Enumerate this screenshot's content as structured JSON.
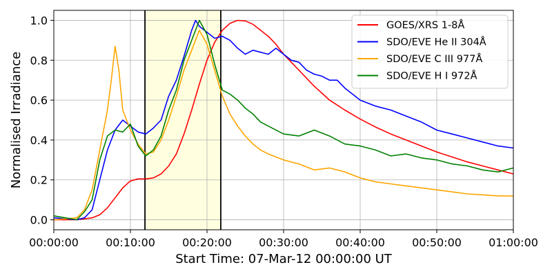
{
  "chart_data": {
    "type": "line",
    "xlabel": "Start Time: 07-Mar-12 00:00:00 UT",
    "ylabel": "Normalised Irradiance",
    "xlim": [
      0,
      60
    ],
    "ylim": [
      -0.05,
      1.05
    ],
    "x_unit": "minutes",
    "grid": true,
    "legend_position": "top-right",
    "xticks": [
      0,
      10,
      20,
      30,
      40,
      50,
      60
    ],
    "xtick_labels": [
      "00:00:00",
      "00:10:00",
      "00:20:00",
      "00:30:00",
      "00:40:00",
      "00:50:00",
      "01:00:00"
    ],
    "yticks": [
      0.0,
      0.2,
      0.4,
      0.6,
      0.8,
      1.0
    ],
    "ytick_labels": [
      "0.0",
      "0.2",
      "0.4",
      "0.6",
      "0.8",
      "1.0"
    ],
    "highlight_span": {
      "start": 11.9,
      "end": 21.8,
      "color": "#ffffe0"
    },
    "vlines": [
      11.9,
      21.8
    ],
    "series": [
      {
        "name": "GOES/XRS 1-8Å",
        "color": "#ff0000",
        "x": [
          0,
          3,
          5,
          6,
          7,
          8,
          9,
          10,
          11,
          12,
          13,
          14,
          15,
          16,
          17,
          18,
          19,
          20,
          21,
          22,
          23,
          24,
          25,
          26,
          27,
          28,
          29,
          30,
          32,
          34,
          36,
          38,
          40,
          42,
          44,
          46,
          48,
          50,
          52,
          54,
          56,
          58,
          60
        ],
        "y": [
          0.0,
          0.0,
          0.01,
          0.025,
          0.06,
          0.11,
          0.16,
          0.195,
          0.205,
          0.205,
          0.21,
          0.23,
          0.27,
          0.33,
          0.43,
          0.55,
          0.68,
          0.8,
          0.89,
          0.95,
          0.985,
          1.0,
          0.997,
          0.98,
          0.95,
          0.92,
          0.88,
          0.83,
          0.75,
          0.67,
          0.6,
          0.55,
          0.505,
          0.465,
          0.43,
          0.4,
          0.37,
          0.34,
          0.315,
          0.29,
          0.27,
          0.25,
          0.23
        ]
      },
      {
        "name": "SDO/EVE He II 304Å",
        "color": "#0000ff",
        "x": [
          0,
          3,
          4,
          5,
          6,
          7,
          8,
          9,
          10,
          11,
          12,
          13,
          14,
          15,
          16,
          17,
          18,
          18.5,
          19,
          20,
          21,
          22,
          23,
          24,
          25,
          26,
          27,
          28,
          29,
          30,
          31,
          32,
          33,
          34,
          35,
          36,
          37,
          38,
          40,
          42,
          44,
          46,
          48,
          50,
          52,
          54,
          56,
          58,
          60
        ],
        "y": [
          0.01,
          0.0,
          0.01,
          0.05,
          0.2,
          0.35,
          0.45,
          0.5,
          0.47,
          0.44,
          0.43,
          0.46,
          0.5,
          0.62,
          0.7,
          0.82,
          0.95,
          1.0,
          0.97,
          0.94,
          0.91,
          0.92,
          0.9,
          0.86,
          0.83,
          0.85,
          0.84,
          0.83,
          0.86,
          0.83,
          0.8,
          0.79,
          0.75,
          0.73,
          0.72,
          0.7,
          0.7,
          0.66,
          0.6,
          0.57,
          0.55,
          0.52,
          0.49,
          0.45,
          0.43,
          0.41,
          0.39,
          0.37,
          0.36
        ]
      },
      {
        "name": "SDO/EVE C III 977Å",
        "color": "#ffa500",
        "x": [
          0,
          3,
          4,
          5,
          6,
          7,
          7.5,
          8,
          8.5,
          9,
          10,
          11,
          12,
          13,
          14,
          15,
          16,
          17,
          18,
          19,
          20,
          21,
          22,
          23,
          24,
          25,
          26,
          27,
          28,
          30,
          32,
          34,
          36,
          38,
          40,
          42,
          44,
          46,
          48,
          50,
          52,
          54,
          56,
          58,
          60
        ],
        "y": [
          0.0,
          0.01,
          0.05,
          0.15,
          0.35,
          0.55,
          0.7,
          0.87,
          0.75,
          0.55,
          0.45,
          0.38,
          0.33,
          0.34,
          0.4,
          0.5,
          0.62,
          0.75,
          0.85,
          0.95,
          0.88,
          0.75,
          0.62,
          0.53,
          0.47,
          0.42,
          0.38,
          0.35,
          0.33,
          0.3,
          0.28,
          0.25,
          0.26,
          0.24,
          0.21,
          0.19,
          0.18,
          0.17,
          0.16,
          0.15,
          0.14,
          0.13,
          0.125,
          0.12,
          0.12
        ]
      },
      {
        "name": "SDO/EVE H I 972Å",
        "color": "#008000",
        "x": [
          0,
          3,
          4,
          5,
          6,
          7,
          8,
          9,
          10,
          11,
          12,
          13,
          14,
          15,
          16,
          17,
          18,
          19,
          20,
          21,
          22,
          23,
          24,
          25,
          26,
          27,
          28,
          30,
          32,
          34,
          36,
          38,
          40,
          42,
          44,
          46,
          48,
          50,
          52,
          54,
          56,
          58,
          60
        ],
        "y": [
          0.02,
          0.0,
          0.04,
          0.1,
          0.3,
          0.42,
          0.45,
          0.44,
          0.48,
          0.37,
          0.32,
          0.35,
          0.42,
          0.55,
          0.65,
          0.8,
          0.9,
          1.0,
          0.93,
          0.78,
          0.65,
          0.63,
          0.6,
          0.56,
          0.53,
          0.49,
          0.47,
          0.43,
          0.42,
          0.45,
          0.42,
          0.38,
          0.37,
          0.35,
          0.32,
          0.33,
          0.31,
          0.3,
          0.28,
          0.27,
          0.25,
          0.24,
          0.26
        ]
      }
    ]
  }
}
